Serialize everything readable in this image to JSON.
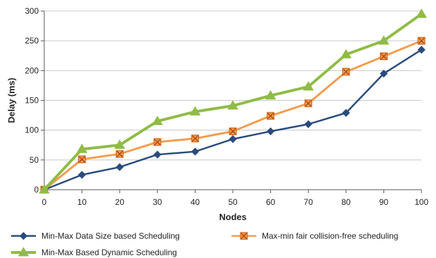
{
  "chart_data": {
    "type": "line",
    "title": "",
    "xlabel": "Nodes",
    "ylabel": "Delay (ms)",
    "x": [
      0,
      10,
      20,
      30,
      40,
      50,
      60,
      70,
      80,
      90,
      100
    ],
    "xlim": [
      0,
      100
    ],
    "ylim": [
      0,
      300
    ],
    "xticks": [
      "0",
      "10",
      "20",
      "30",
      "40",
      "50",
      "60",
      "70",
      "80",
      "90",
      "100"
    ],
    "yticks": [
      "0",
      "50",
      "100",
      "150",
      "200",
      "250",
      "300"
    ],
    "grid": "horizontal",
    "legend_position": "bottom",
    "series": [
      {
        "name": "Min-Max Data Size based Scheduling",
        "values": [
          0,
          25,
          38,
          59,
          64,
          85,
          98,
          110,
          129,
          195,
          235
        ],
        "color": "#2a4c7d",
        "marker": "diamond"
      },
      {
        "name": "Max-min fair collision-free scheduling",
        "values": [
          0,
          51,
          60,
          80,
          86,
          98,
          124,
          145,
          198,
          224,
          250
        ],
        "color": "#f39c4f",
        "marker": "x-square"
      },
      {
        "name": "Min-Max Based Dynamic Scheduling",
        "values": [
          0,
          68,
          75,
          115,
          131,
          141,
          158,
          173,
          227,
          250,
          295
        ],
        "color": "#8fbc45",
        "marker": "triangle"
      }
    ]
  }
}
